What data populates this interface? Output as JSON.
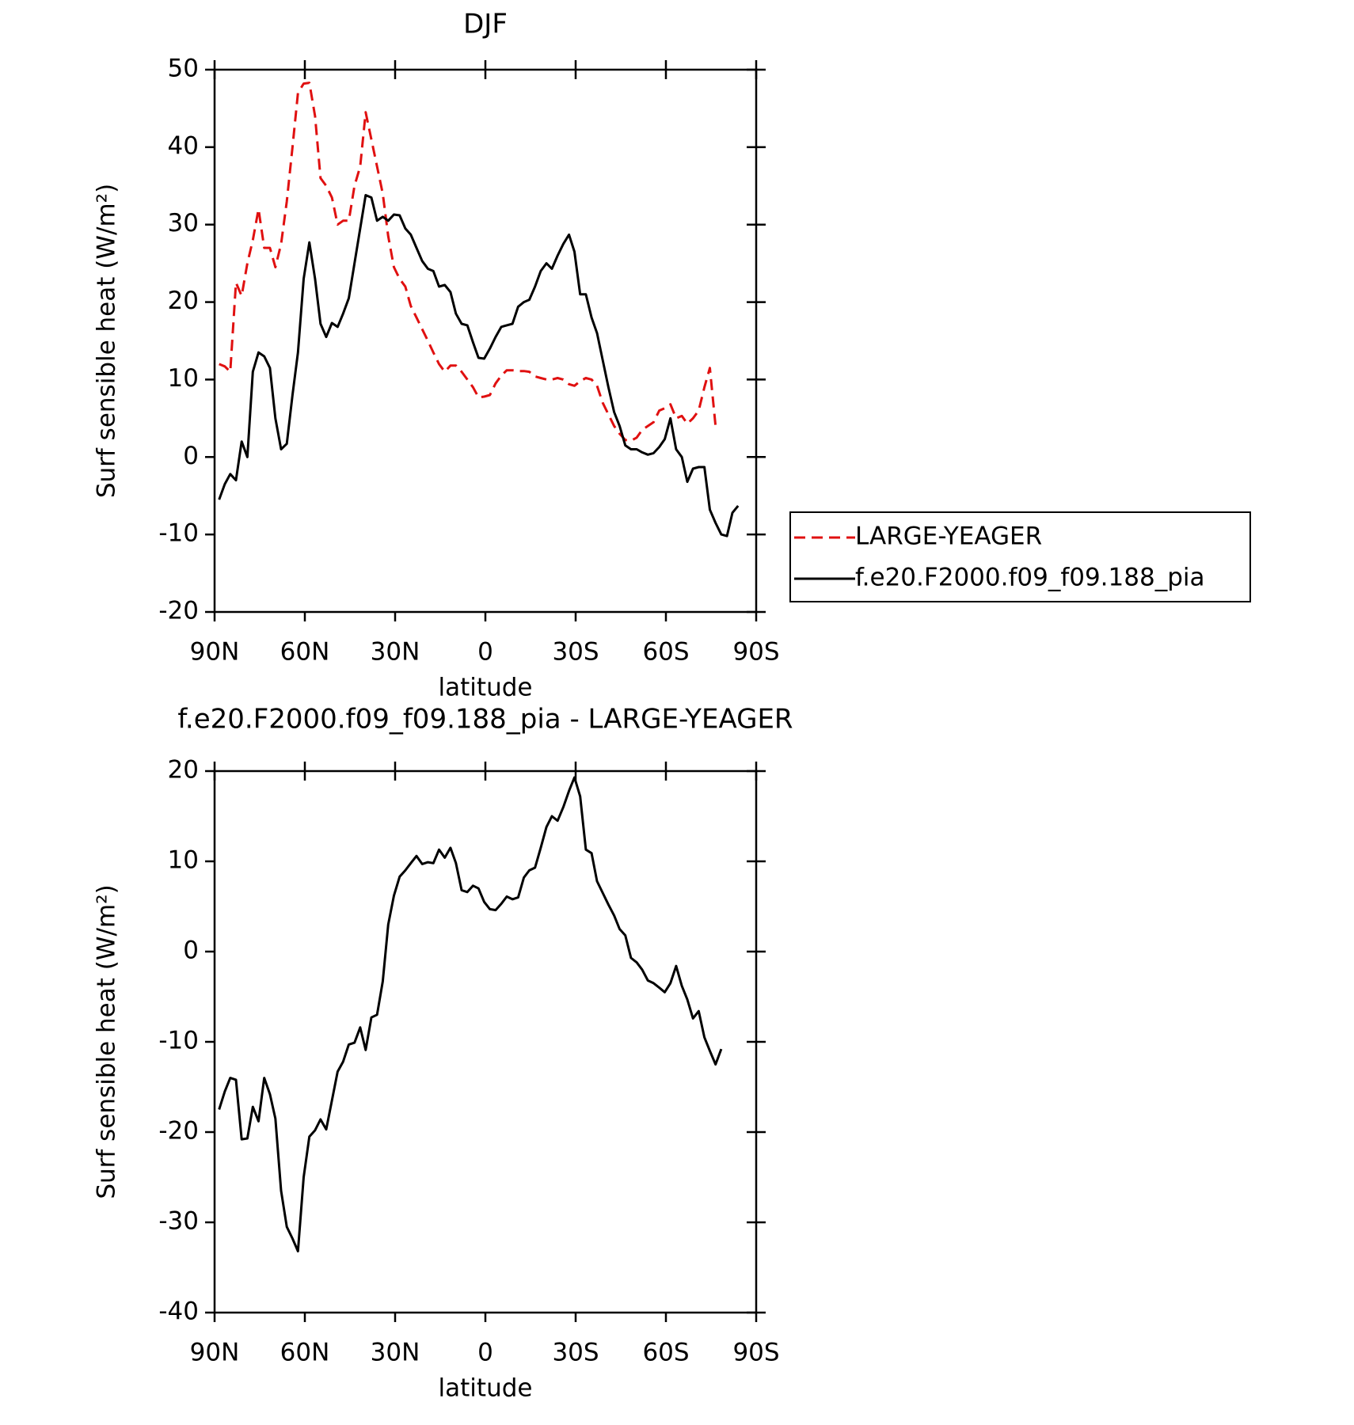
{
  "chart_data": [
    {
      "type": "line",
      "title": "DJF",
      "xlabel": "latitude",
      "ylabel": "Surf sensible heat (W/m²)",
      "xlim": [
        90,
        -90
      ],
      "ylim": [
        -20,
        50
      ],
      "xticks": [
        {
          "value": 90,
          "label": "90N"
        },
        {
          "value": 60,
          "label": "60N"
        },
        {
          "value": 30,
          "label": "30N"
        },
        0,
        {
          "value": -30,
          "label": "30S"
        },
        {
          "value": -60,
          "label": "60S"
        },
        {
          "value": -90,
          "label": "90S"
        }
      ],
      "yticks": [
        -20,
        -10,
        0,
        10,
        20,
        30,
        40,
        50
      ],
      "legend": "right",
      "x": [
        88.5,
        86.6,
        84.8,
        82.9,
        81.0,
        79.1,
        77.3,
        75.4,
        73.5,
        71.6,
        69.8,
        67.9,
        66.0,
        64.1,
        62.3,
        60.4,
        58.5,
        56.6,
        54.8,
        52.9,
        51.0,
        49.1,
        47.3,
        45.4,
        43.5,
        41.6,
        39.8,
        37.9,
        36.0,
        34.1,
        32.3,
        30.4,
        28.5,
        26.6,
        24.8,
        22.9,
        21.0,
        19.1,
        17.3,
        15.4,
        13.5,
        11.6,
        9.8,
        7.9,
        6.0,
        4.1,
        2.3,
        0.4,
        -1.5,
        -3.4,
        -5.3,
        -7.1,
        -9.0,
        -10.9,
        -12.8,
        -14.6,
        -16.5,
        -18.4,
        -20.3,
        -22.1,
        -24.0,
        -25.9,
        -27.8,
        -29.6,
        -31.5,
        -33.4,
        -35.3,
        -37.1,
        -39.0,
        -40.9,
        -42.8,
        -44.6,
        -46.5,
        -48.4,
        -50.3,
        -52.1,
        -54.0,
        -55.9,
        -57.8,
        -59.6,
        -61.5,
        -63.4,
        -65.3,
        -67.1,
        -69.0,
        -70.9,
        -72.8,
        -74.6,
        -76.5,
        -78.4,
        -80.3,
        -82.1,
        -84.0
      ],
      "series": [
        {
          "name": "LARGE-YEAGER",
          "color": "#e01010",
          "dash": true,
          "values": [
            12,
            11.7,
            11,
            22.5,
            20.8,
            25,
            28,
            32,
            27,
            27,
            24.5,
            27.5,
            33,
            40,
            47,
            48.2,
            48.3,
            44,
            36,
            35,
            33.5,
            30,
            30.5,
            30.5,
            35,
            37.5,
            44.5,
            41,
            37.5,
            34,
            28.5,
            24.5,
            23,
            22,
            19.5,
            18,
            16.5,
            15,
            13.5,
            12,
            11,
            11.8,
            11.8,
            11,
            10,
            9,
            7.7,
            7.8,
            8,
            9.5,
            10.5,
            11.2,
            11.2,
            11.1,
            11.1,
            11,
            10.4,
            10.2,
            10,
            10,
            10.2,
            10,
            9.4,
            9.2,
            9.8,
            10.2,
            10,
            9.2,
            7,
            5.5,
            4,
            3,
            2.2,
            2.1,
            2.5,
            3.5,
            4,
            4.5,
            6,
            6.3,
            6.8,
            5,
            5.3,
            4.3,
            5,
            6,
            9,
            11.5,
            4,
            null,
            null,
            null,
            null
          ]
        },
        {
          "name": "f.e20.F2000.f09_f09.188_pia",
          "color": "#000000",
          "dash": false,
          "values": [
            -5.5,
            -3.5,
            -2.2,
            -3,
            2,
            0,
            11,
            13.5,
            13,
            11.5,
            5,
            1,
            1.7,
            8,
            13.5,
            23,
            27.7,
            23,
            17.2,
            15.5,
            17.3,
            16.8,
            18.5,
            20.5,
            25,
            29.5,
            33.8,
            33.5,
            30.5,
            31,
            30.5,
            31.3,
            31.2,
            29.5,
            28.7,
            27,
            25.3,
            24.3,
            24,
            22,
            22.2,
            21.3,
            18.5,
            17.2,
            17,
            14.8,
            12.8,
            12.7,
            14,
            15.5,
            16.8,
            17,
            17.2,
            19.4,
            20,
            20.3,
            22,
            24,
            25,
            24.3,
            26,
            27.5,
            28.7,
            26.5,
            21,
            21,
            18,
            16,
            12.5,
            9,
            5.8,
            4,
            1.5,
            1,
            1,
            0.6,
            0.3,
            0.5,
            1.3,
            2.3,
            5,
            1,
            0,
            -3.2,
            -1.5,
            -1.3,
            -1.3,
            -6.8,
            -8.5,
            -10,
            -10.2,
            -7.2,
            -6.3
          ]
        }
      ]
    },
    {
      "type": "line",
      "title": "f.e20.F2000.f09_f09.188_pia - LARGE-YEAGER",
      "xlabel": "latitude",
      "ylabel": "Surf sensible heat (W/m²)",
      "xlim": [
        90,
        -90
      ],
      "ylim": [
        -40,
        20
      ],
      "xticks": [
        {
          "value": 90,
          "label": "90N"
        },
        {
          "value": 60,
          "label": "60N"
        },
        {
          "value": 30,
          "label": "30N"
        },
        0,
        {
          "value": -30,
          "label": "30S"
        },
        {
          "value": -60,
          "label": "60S"
        },
        {
          "value": -90,
          "label": "90S"
        }
      ],
      "yticks": [
        -40,
        -30,
        -20,
        -10,
        0,
        10,
        20
      ],
      "x": [
        88.5,
        86.6,
        84.8,
        82.9,
        81.0,
        79.1,
        77.3,
        75.4,
        73.5,
        71.6,
        69.8,
        67.9,
        66.0,
        64.1,
        62.3,
        60.4,
        58.5,
        56.6,
        54.8,
        52.9,
        51.0,
        49.1,
        47.3,
        45.4,
        43.5,
        41.6,
        39.8,
        37.9,
        36.0,
        34.1,
        32.3,
        30.4,
        28.5,
        26.6,
        24.8,
        22.9,
        21.0,
        19.1,
        17.3,
        15.4,
        13.5,
        11.6,
        9.8,
        7.9,
        6.0,
        4.1,
        2.3,
        0.4,
        -1.5,
        -3.4,
        -5.3,
        -7.1,
        -9.0,
        -10.9,
        -12.8,
        -14.6,
        -16.5,
        -18.4,
        -20.3,
        -22.1,
        -24.0,
        -25.9,
        -27.8,
        -29.6,
        -31.5,
        -33.4,
        -35.3,
        -37.1,
        -39.0,
        -40.9,
        -42.8,
        -44.6,
        -46.5,
        -48.4,
        -50.3,
        -52.1,
        -54.0,
        -55.9,
        -57.8,
        -59.6,
        -61.5,
        -63.4,
        -65.3,
        -67.1,
        -69.0,
        -70.9,
        -72.8,
        -74.6,
        -76.5,
        -78.4,
        -80.3,
        -82.1,
        -84.0
      ],
      "color": "#000000",
      "values": [
        -17.5,
        -15.5,
        -14,
        -14.2,
        -20.8,
        -20.7,
        -17.2,
        -18.8,
        -14,
        -15.8,
        -18.5,
        -26.5,
        -30.5,
        -31.8,
        -33.2,
        -25,
        -20.5,
        -19.8,
        -18.6,
        -19.7,
        -16.5,
        -13.3,
        -12.2,
        -10.3,
        -10.1,
        -8.4,
        -10.9,
        -7.3,
        -7,
        -3.3,
        3,
        6.2,
        8.3,
        9,
        9.8,
        10.6,
        9.7,
        9.9,
        9.8,
        11.3,
        10.4,
        11.5,
        9.8,
        6.8,
        6.6,
        7.3,
        7,
        5.5,
        4.7,
        4.6,
        5.3,
        6.1,
        5.8,
        6,
        8.2,
        9,
        9.3,
        11.5,
        13.8,
        15,
        14.5,
        16,
        17.8,
        19.3,
        17.2,
        11.3,
        10.9,
        7.8,
        6.5,
        5.2,
        4,
        2.5,
        1.8,
        -0.7,
        -1.2,
        -2,
        -3.2,
        -3.5,
        -4,
        -4.5,
        -3.5,
        -1.6,
        -3.8,
        -5.3,
        -7.4,
        -6.6,
        -9.5,
        -11,
        -12.5,
        -10.8,
        null,
        null,
        null
      ]
    }
  ]
}
